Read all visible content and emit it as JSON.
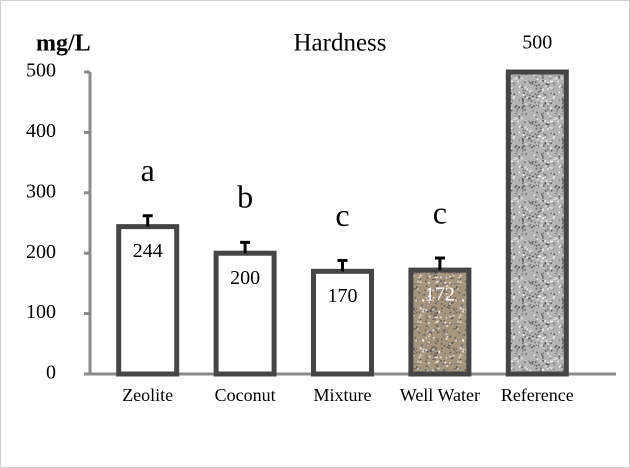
{
  "chart_data": {
    "type": "bar",
    "title": "Hardness",
    "y_label": "mg/L",
    "categories": [
      "Zeolite",
      "Coconut",
      "Mixture",
      "Well Water",
      "Reference"
    ],
    "values": [
      244,
      200,
      170,
      172,
      500
    ],
    "errors": [
      18,
      18,
      18,
      20,
      null
    ],
    "annotations": [
      "a",
      "b",
      "c",
      "c",
      null
    ],
    "colors": [
      "#ffffff",
      "#ffffff",
      "#ffffff",
      "#a8957e",
      "#b4b4b4"
    ],
    "textures": [
      false,
      false,
      false,
      true,
      true
    ],
    "ylim": [
      0,
      500
    ],
    "yticks": [
      0,
      100,
      200,
      300,
      400,
      500
    ],
    "grid": false
  }
}
